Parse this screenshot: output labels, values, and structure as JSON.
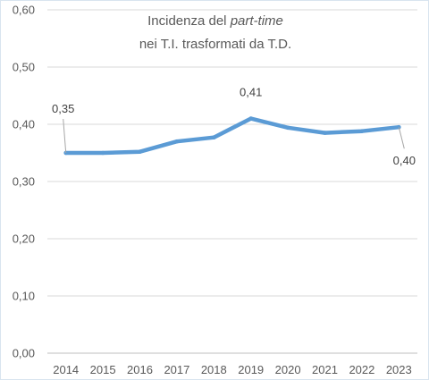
{
  "chart_data": {
    "type": "line",
    "title_line1_prefix": "Incidenza del ",
    "title_line1_italic": "part-time",
    "title_line2": "nei T.I. trasformati da T.D.",
    "xlabel": "",
    "ylabel": "",
    "ylim": [
      0,
      0.6
    ],
    "y_ticks": [
      {
        "value": 0.6,
        "label": "0,60"
      },
      {
        "value": 0.5,
        "label": "0,50"
      },
      {
        "value": 0.4,
        "label": "0,40"
      },
      {
        "value": 0.3,
        "label": "0,30"
      },
      {
        "value": 0.2,
        "label": "0,20"
      },
      {
        "value": 0.1,
        "label": "0,10"
      },
      {
        "value": 0.0,
        "label": "0,00"
      }
    ],
    "grid": true,
    "legend": "none",
    "categories": [
      "2014",
      "2015",
      "2016",
      "2017",
      "2018",
      "2019",
      "2020",
      "2021",
      "2022",
      "2023"
    ],
    "series": [
      {
        "values": [
          0.35,
          0.35,
          0.352,
          0.37,
          0.377,
          0.41,
          0.394,
          0.385,
          0.388,
          0.395
        ],
        "color": "#5b9bd5"
      }
    ],
    "data_labels": [
      {
        "index": 0,
        "text": "0,35"
      },
      {
        "index": 5,
        "text": "0,41"
      },
      {
        "index": 9,
        "text": "0,40"
      }
    ]
  }
}
